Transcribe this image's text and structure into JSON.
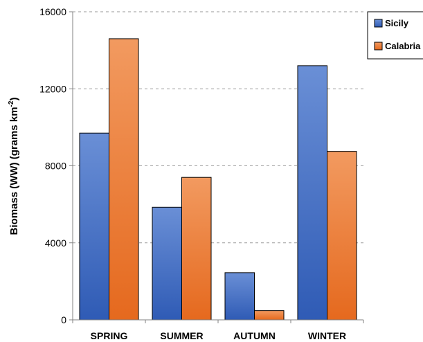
{
  "chart_data": {
    "type": "bar",
    "categories": [
      "SPRING",
      "SUMMER",
      "AUTUMN",
      "WINTER"
    ],
    "series": [
      {
        "name": "Sicily",
        "values": [
          9700,
          5850,
          2450,
          13200
        ],
        "color": "#4472c4"
      },
      {
        "name": "Calabria",
        "values": [
          14600,
          7400,
          480,
          8750
        ],
        "color": "#ed7d31"
      }
    ],
    "ylabel_main": "Biomass (WW)  (grams km",
    "ylabel_sup": "-2",
    "ylabel_end": ")",
    "ylim": [
      0,
      16000
    ],
    "yticks": [
      0,
      4000,
      8000,
      12000,
      16000
    ],
    "grid": true,
    "legend_position": "top-right"
  }
}
